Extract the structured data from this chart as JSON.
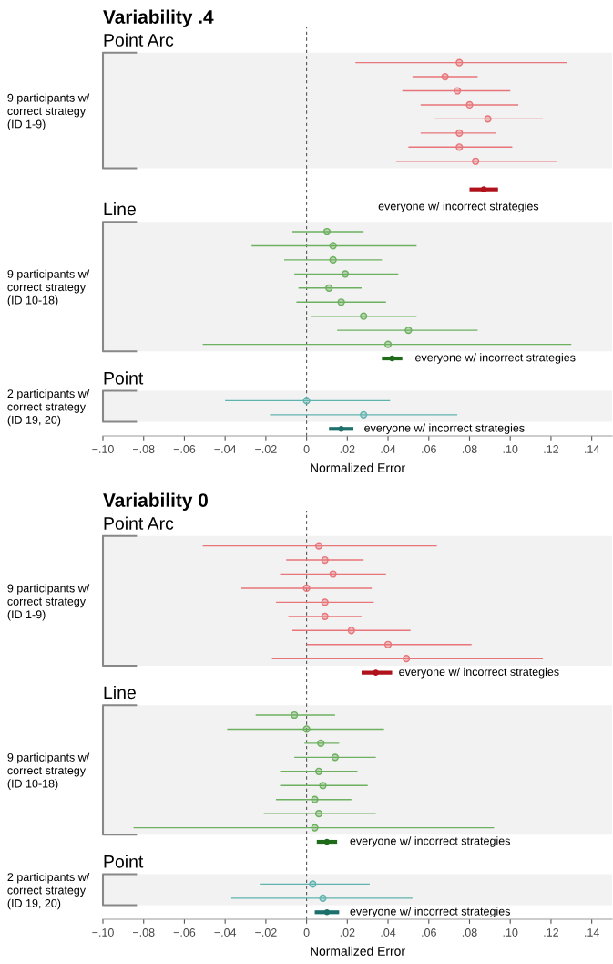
{
  "chart_data": [
    {
      "type": "scatter",
      "orientation": "horizontal",
      "title": "Variability .4",
      "xlabel": "Normalized Error",
      "categories": [
        null,
        null,
        null,
        null,
        null,
        null,
        null,
        null,
        null,
        null,
        null,
        null,
        null,
        null,
        null,
        null,
        null,
        null,
        null,
        null,
        null,
        null,
        null,
        null,
        null,
        null,
        null,
        null,
        null
      ],
      "xlim": [
        -0.1,
        0.15
      ],
      "xticks": [
        {
          "value": -0.1,
          "label": "−.10"
        },
        {
          "value": -0.08,
          "label": "−.08"
        },
        {
          "value": -0.06,
          "label": "−.06"
        },
        {
          "value": -0.04,
          "label": "−.04"
        },
        {
          "value": -0.02,
          "label": "−.02"
        },
        0,
        {
          "value": 0.02,
          "label": ".02"
        },
        {
          "value": 0.04,
          "label": ".04"
        },
        {
          "value": 0.06,
          "label": ".06"
        },
        {
          "value": 0.08,
          "label": ".08"
        },
        {
          "value": 0.1,
          "label": ".10"
        },
        {
          "value": 0.12,
          "label": ".12"
        },
        {
          "value": 0.14,
          "label": ".14"
        }
      ],
      "marker": "circle",
      "tick_labels": "x",
      "series": [
        {
          "color": "#e8757a",
          "values": [
            null,
            null,
            0.075,
            0.068,
            0.074,
            0.08,
            0.089,
            0.075,
            0.075,
            0.083,
            null,
            null,
            null,
            null,
            null,
            null,
            null,
            null,
            null,
            null,
            null,
            null,
            null,
            null,
            null,
            null,
            null,
            null,
            null
          ],
          "errors": [
            null,
            null,
            [
              0.024,
              0.128
            ],
            [
              0.052,
              0.084
            ],
            [
              0.047,
              0.1
            ],
            [
              0.056,
              0.104
            ],
            [
              0.063,
              0.116
            ],
            [
              0.056,
              0.093
            ],
            [
              0.05,
              0.101
            ],
            [
              0.044,
              0.123
            ],
            null,
            null,
            null,
            null,
            null,
            null,
            null,
            null,
            null,
            null,
            null,
            null,
            null,
            null,
            null,
            null,
            null,
            null,
            null
          ]
        },
        {
          "color": "#b0121c",
          "values": [
            null,
            null,
            null,
            null,
            null,
            null,
            null,
            null,
            null,
            null,
            null,
            0.087,
            null,
            null,
            null,
            null,
            null,
            null,
            null,
            null,
            null,
            null,
            null,
            null,
            null,
            null,
            null,
            null,
            null
          ],
          "errors": [
            null,
            null,
            null,
            null,
            null,
            null,
            null,
            null,
            null,
            null,
            null,
            [
              0.08,
              0.094
            ],
            null,
            null,
            null,
            null,
            null,
            null,
            null,
            null,
            null,
            null,
            null,
            null,
            null,
            null,
            null,
            null,
            null
          ]
        },
        {
          "color": "#6db05f",
          "values": [
            null,
            null,
            null,
            null,
            null,
            null,
            null,
            null,
            null,
            null,
            null,
            null,
            null,
            null,
            0.01,
            0.013,
            0.013,
            0.019,
            0.011,
            0.017,
            0.028,
            0.05,
            0.04,
            null,
            null,
            null,
            null,
            null,
            null
          ],
          "errors": [
            null,
            null,
            null,
            null,
            null,
            null,
            null,
            null,
            null,
            null,
            null,
            null,
            null,
            null,
            [
              -0.007,
              0.028
            ],
            [
              -0.027,
              0.054
            ],
            [
              -0.011,
              0.037
            ],
            [
              -0.006,
              0.045
            ],
            [
              -0.004,
              0.027
            ],
            [
              -0.005,
              0.039
            ],
            [
              0.002,
              0.054
            ],
            [
              0.015,
              0.084
            ],
            [
              -0.051,
              0.13
            ],
            null,
            null,
            null,
            null,
            null,
            null
          ]
        },
        {
          "color": "#1f6b1a",
          "values": [
            null,
            null,
            null,
            null,
            null,
            null,
            null,
            null,
            null,
            null,
            null,
            null,
            null,
            null,
            null,
            null,
            null,
            null,
            null,
            null,
            null,
            null,
            null,
            0.042,
            null,
            null,
            null,
            null,
            null
          ],
          "errors": [
            null,
            null,
            null,
            null,
            null,
            null,
            null,
            null,
            null,
            null,
            null,
            null,
            null,
            null,
            null,
            null,
            null,
            null,
            null,
            null,
            null,
            null,
            null,
            [
              0.037,
              0.047
            ],
            null,
            null,
            null,
            null,
            null
          ]
        },
        {
          "color": "#5fb3ae",
          "values": [
            null,
            null,
            null,
            null,
            null,
            null,
            null,
            null,
            null,
            null,
            null,
            null,
            null,
            null,
            null,
            null,
            null,
            null,
            null,
            null,
            null,
            null,
            null,
            null,
            null,
            null,
            0.0,
            0.028,
            null
          ],
          "errors": [
            null,
            null,
            null,
            null,
            null,
            null,
            null,
            null,
            null,
            null,
            null,
            null,
            null,
            null,
            null,
            null,
            null,
            null,
            null,
            null,
            null,
            null,
            null,
            null,
            null,
            null,
            [
              -0.04,
              0.041
            ],
            [
              -0.018,
              0.074
            ],
            null
          ]
        },
        {
          "color": "#1d6f6b",
          "values": [
            null,
            null,
            null,
            null,
            null,
            null,
            null,
            null,
            null,
            null,
            null,
            null,
            null,
            null,
            null,
            null,
            null,
            null,
            null,
            null,
            null,
            null,
            null,
            null,
            null,
            null,
            null,
            null,
            0.017
          ],
          "errors": [
            null,
            null,
            null,
            null,
            null,
            null,
            null,
            null,
            null,
            null,
            null,
            null,
            null,
            null,
            null,
            null,
            null,
            null,
            null,
            null,
            null,
            null,
            null,
            null,
            null,
            null,
            null,
            null,
            [
              0.011,
              0.023
            ]
          ]
        }
      ],
      "ref_lines": [
        {
          "axis": "x",
          "value": 0,
          "line_style": "dashed",
          "color": "#555555"
        }
      ],
      "annotations": [
        "Point Arc",
        "9 participants w/\ncorrect strategy\n(ID 1-9)",
        "everyone w/ incorrect strategies",
        "Line",
        "9 participants w/\ncorrect strategy\n(ID 10-18)",
        "everyone w/ incorrect strategies",
        "Point",
        "2 participants w/\ncorrect strategy\n(ID 19, 20)",
        "everyone w/ incorrect strategies"
      ]
    },
    {
      "type": "scatter",
      "orientation": "horizontal",
      "title": "Variability 0",
      "xlabel": "Normalized Error",
      "categories": [
        null,
        null,
        null,
        null,
        null,
        null,
        null,
        null,
        null,
        null,
        null,
        null,
        null,
        null,
        null,
        null,
        null,
        null,
        null,
        null,
        null,
        null,
        null,
        null,
        null,
        null,
        null,
        null,
        null
      ],
      "xlim": [
        -0.1,
        0.15
      ],
      "xticks": [
        {
          "value": -0.1,
          "label": "−.10"
        },
        {
          "value": -0.08,
          "label": "−.08"
        },
        {
          "value": -0.06,
          "label": "−.06"
        },
        {
          "value": -0.04,
          "label": "−.04"
        },
        {
          "value": -0.02,
          "label": "−.02"
        },
        0,
        {
          "value": 0.02,
          "label": ".02"
        },
        {
          "value": 0.04,
          "label": ".04"
        },
        {
          "value": 0.06,
          "label": ".06"
        },
        {
          "value": 0.08,
          "label": ".08"
        },
        {
          "value": 0.1,
          "label": ".10"
        },
        {
          "value": 0.12,
          "label": ".12"
        },
        {
          "value": 0.14,
          "label": ".14"
        }
      ],
      "marker": "circle",
      "tick_labels": "x",
      "series": [
        {
          "color": "#e8757a",
          "values": [
            null,
            null,
            0.006,
            0.009,
            0.013,
            0.0,
            0.009,
            0.009,
            0.022,
            0.04,
            0.049,
            null,
            null,
            null,
            null,
            null,
            null,
            null,
            null,
            null,
            null,
            null,
            null,
            null,
            null,
            null,
            null,
            null,
            null
          ],
          "errors": [
            null,
            null,
            [
              -0.051,
              0.064
            ],
            [
              -0.01,
              0.028
            ],
            [
              -0.013,
              0.039
            ],
            [
              -0.032,
              0.032
            ],
            [
              -0.015,
              0.033
            ],
            [
              -0.009,
              0.027
            ],
            [
              -0.007,
              0.051
            ],
            [
              0.0,
              0.081
            ],
            [
              -0.017,
              0.116
            ],
            null,
            null,
            null,
            null,
            null,
            null,
            null,
            null,
            null,
            null,
            null,
            null,
            null,
            null,
            null,
            null,
            null,
            null
          ]
        },
        {
          "color": "#b0121c",
          "values": [
            null,
            null,
            null,
            null,
            null,
            null,
            null,
            null,
            null,
            null,
            null,
            0.034,
            null,
            null,
            null,
            null,
            null,
            null,
            null,
            null,
            null,
            null,
            null,
            null,
            null,
            null,
            null,
            null,
            null
          ],
          "errors": [
            null,
            null,
            null,
            null,
            null,
            null,
            null,
            null,
            null,
            null,
            null,
            [
              0.027,
              0.042
            ],
            null,
            null,
            null,
            null,
            null,
            null,
            null,
            null,
            null,
            null,
            null,
            null,
            null,
            null,
            null,
            null,
            null
          ]
        },
        {
          "color": "#6db05f",
          "values": [
            null,
            null,
            null,
            null,
            null,
            null,
            null,
            null,
            null,
            null,
            null,
            null,
            null,
            null,
            -0.006,
            0.0,
            0.007,
            0.014,
            0.006,
            0.008,
            0.004,
            0.006,
            0.004,
            null,
            null,
            null,
            null,
            null,
            null
          ],
          "errors": [
            null,
            null,
            null,
            null,
            null,
            null,
            null,
            null,
            null,
            null,
            null,
            null,
            null,
            null,
            [
              -0.025,
              0.014
            ],
            [
              -0.039,
              0.038
            ],
            [
              -0.001,
              0.016
            ],
            [
              -0.006,
              0.034
            ],
            [
              -0.013,
              0.025
            ],
            [
              -0.013,
              0.03
            ],
            [
              -0.015,
              0.022
            ],
            [
              -0.021,
              0.034
            ],
            [
              -0.085,
              0.092
            ],
            null,
            null,
            null,
            null,
            null,
            null
          ]
        },
        {
          "color": "#1f6b1a",
          "values": [
            null,
            null,
            null,
            null,
            null,
            null,
            null,
            null,
            null,
            null,
            null,
            null,
            null,
            null,
            null,
            null,
            null,
            null,
            null,
            null,
            null,
            null,
            null,
            0.01,
            null,
            null,
            null,
            null,
            null
          ],
          "errors": [
            null,
            null,
            null,
            null,
            null,
            null,
            null,
            null,
            null,
            null,
            null,
            null,
            null,
            null,
            null,
            null,
            null,
            null,
            null,
            null,
            null,
            null,
            null,
            [
              0.005,
              0.015
            ],
            null,
            null,
            null,
            null,
            null
          ]
        },
        {
          "color": "#5fb3ae",
          "values": [
            null,
            null,
            null,
            null,
            null,
            null,
            null,
            null,
            null,
            null,
            null,
            null,
            null,
            null,
            null,
            null,
            null,
            null,
            null,
            null,
            null,
            null,
            null,
            null,
            null,
            null,
            0.003,
            0.008,
            null
          ],
          "errors": [
            null,
            null,
            null,
            null,
            null,
            null,
            null,
            null,
            null,
            null,
            null,
            null,
            null,
            null,
            null,
            null,
            null,
            null,
            null,
            null,
            null,
            null,
            null,
            null,
            null,
            null,
            [
              -0.023,
              0.031
            ],
            [
              -0.037,
              0.052
            ],
            null
          ]
        },
        {
          "color": "#1d6f6b",
          "values": [
            null,
            null,
            null,
            null,
            null,
            null,
            null,
            null,
            null,
            null,
            null,
            null,
            null,
            null,
            null,
            null,
            null,
            null,
            null,
            null,
            null,
            null,
            null,
            null,
            null,
            null,
            null,
            null,
            0.01
          ],
          "errors": [
            null,
            null,
            null,
            null,
            null,
            null,
            null,
            null,
            null,
            null,
            null,
            null,
            null,
            null,
            null,
            null,
            null,
            null,
            null,
            null,
            null,
            null,
            null,
            null,
            null,
            null,
            null,
            null,
            [
              0.004,
              0.016
            ]
          ]
        }
      ],
      "ref_lines": [
        {
          "axis": "x",
          "value": 0,
          "line_style": "dashed",
          "color": "#555555"
        }
      ],
      "annotations": [
        "Point Arc",
        "9 participants w/\ncorrect strategy\n(ID 1-9)",
        "everyone w/ incorrect strategies",
        "Line",
        "9 participants w/\ncorrect strategy\n(ID 10-18)",
        "everyone w/ incorrect strategies",
        "Point",
        "2 participants w/\ncorrect strategy\n(ID 19, 20)",
        "everyone w/ incorrect strategies"
      ]
    }
  ]
}
